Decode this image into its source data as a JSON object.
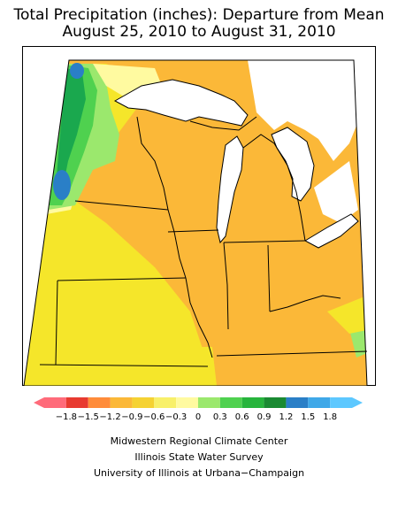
{
  "title": {
    "line1": "Total Precipitation (inches): Departure from Mean",
    "line2": "August 25, 2010 to August 31, 2010"
  },
  "map": {
    "region": "Midwest United States",
    "variable": "precipitation departure from mean",
    "units": "inches",
    "dominant_value_band": "-0.9 to -1.2",
    "colors": {
      "dominant_orange": "#fbb838",
      "yellow": "#f5e62a",
      "light_yellow": "#fffaa0",
      "light_green": "#9be86d",
      "green": "#4fd14f",
      "dark_green": "#1aa84e",
      "blue": "#2a7fc7",
      "water": "#ffffff",
      "outline": "#000000"
    }
  },
  "legend": {
    "labels": [
      "−1.8",
      "−1.5",
      "−1.2",
      "−0.9",
      "−0.6",
      "−0.3",
      "0",
      "0.3",
      "0.6",
      "0.9",
      "1.2",
      "1.5",
      "1.8"
    ],
    "colors": [
      "#ff6b7a",
      "#e83a30",
      "#ff8c3a",
      "#fbb838",
      "#f5d233",
      "#f8f06a",
      "#fffaa0",
      "#9be86d",
      "#4fd14f",
      "#27b43c",
      "#1a8a32",
      "#2a7fc7",
      "#3fa8e8",
      "#5dc8ff"
    ]
  },
  "credits": {
    "line1": "Midwestern Regional Climate Center",
    "line2": "Illinois State Water Survey",
    "line3": "University of Illinois at Urbana−Champaign"
  }
}
